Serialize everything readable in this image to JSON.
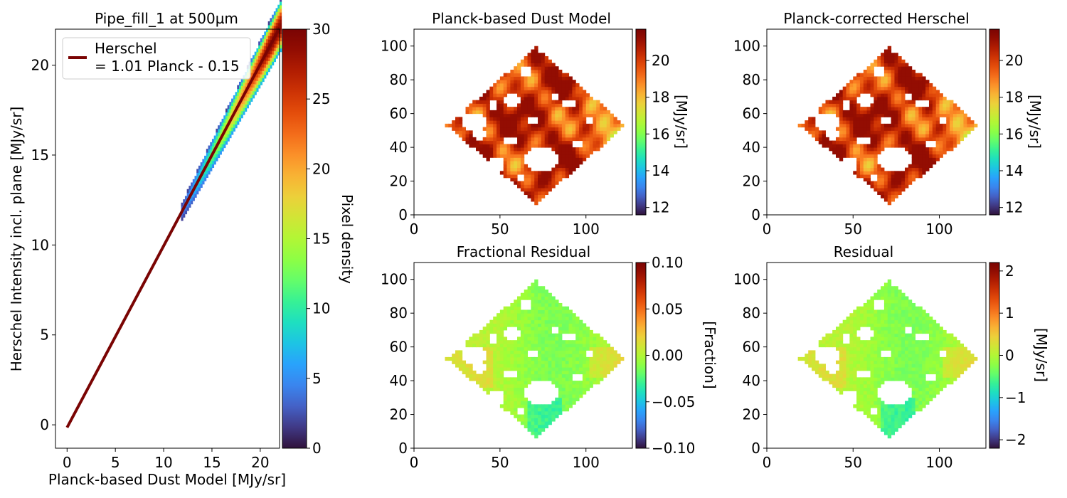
{
  "chart_data": [
    {
      "panel": "scatter",
      "type": "heatmap",
      "title": "Pipe_fill_1 at 500µm",
      "xlabel": "Planck-based Dust Model [MJy/sr]",
      "ylabel": "Herschel Intensity incl. plane [MJy/sr]",
      "xlim": [
        -1.2,
        22
      ],
      "ylim": [
        -1.3,
        22
      ],
      "xticks": [
        "0",
        "5",
        "10",
        "15",
        "20"
      ],
      "yticks": [
        "0",
        "5",
        "10",
        "15",
        "20"
      ],
      "fit": {
        "slope": 1.01,
        "intercept": -0.15,
        "x_range": [
          0,
          22
        ],
        "color": "#7a0403"
      },
      "legend": {
        "label_line1": "Herschel",
        "label_line2": "= 1.01 Planck - 0.15",
        "position": "upper left"
      },
      "colorbar": {
        "label": "Pixel density",
        "range": [
          0,
          30
        ],
        "ticks": [
          "0",
          "5",
          "10",
          "15",
          "20",
          "25",
          "30"
        ],
        "colormap": "turbo"
      },
      "density_band": {
        "x_range": [
          11.8,
          22
        ],
        "note": "2D histogram of pixel counts along the fit line"
      }
    },
    {
      "panel": "planck_model",
      "type": "heatmap",
      "title": "Planck-based Dust Model",
      "xlim": [
        0,
        127
      ],
      "ylim": [
        0,
        110
      ],
      "xticks": [
        "0",
        "50",
        "100"
      ],
      "yticks": [
        "0",
        "20",
        "40",
        "60",
        "80",
        "100"
      ],
      "colorbar": {
        "label": "[MJy/sr]",
        "range": [
          11.6,
          21.7
        ],
        "ticks": [
          "12",
          "14",
          "16",
          "18",
          "20"
        ],
        "colormap": "turbo"
      }
    },
    {
      "panel": "corrected_herschel",
      "type": "heatmap",
      "title": "Planck-corrected Herschel",
      "xlim": [
        0,
        127
      ],
      "ylim": [
        0,
        110
      ],
      "xticks": [
        "0",
        "50",
        "100"
      ],
      "yticks": [
        "0",
        "20",
        "40",
        "60",
        "80",
        "100"
      ],
      "colorbar": {
        "label": "[MJy/sr]",
        "range": [
          11.6,
          21.7
        ],
        "ticks": [
          "12",
          "14",
          "16",
          "18",
          "20"
        ],
        "colormap": "turbo"
      }
    },
    {
      "panel": "fractional_residual",
      "type": "heatmap",
      "title": "Fractional Residual",
      "xlim": [
        0,
        127
      ],
      "ylim": [
        0,
        110
      ],
      "xticks": [
        "0",
        "50",
        "100"
      ],
      "yticks": [
        "0",
        "20",
        "40",
        "60",
        "80",
        "100"
      ],
      "colorbar": {
        "label": "[Fraction]",
        "range": [
          -0.1,
          0.1
        ],
        "ticks": [
          "−0.10",
          "−0.05",
          "0.00",
          "0.05",
          "0.10"
        ],
        "colormap": "turbo"
      }
    },
    {
      "panel": "residual",
      "type": "heatmap",
      "title": "Residual",
      "xlim": [
        0,
        127
      ],
      "ylim": [
        0,
        110
      ],
      "xticks": [
        "0",
        "50",
        "100"
      ],
      "yticks": [
        "0",
        "20",
        "40",
        "60",
        "80",
        "100"
      ],
      "colorbar": {
        "label": "[MJy/sr]",
        "range": [
          -2.2,
          2.2
        ],
        "ticks": [
          "−2",
          "−1",
          "0",
          "1",
          "2"
        ],
        "colormap": "turbo"
      }
    }
  ]
}
